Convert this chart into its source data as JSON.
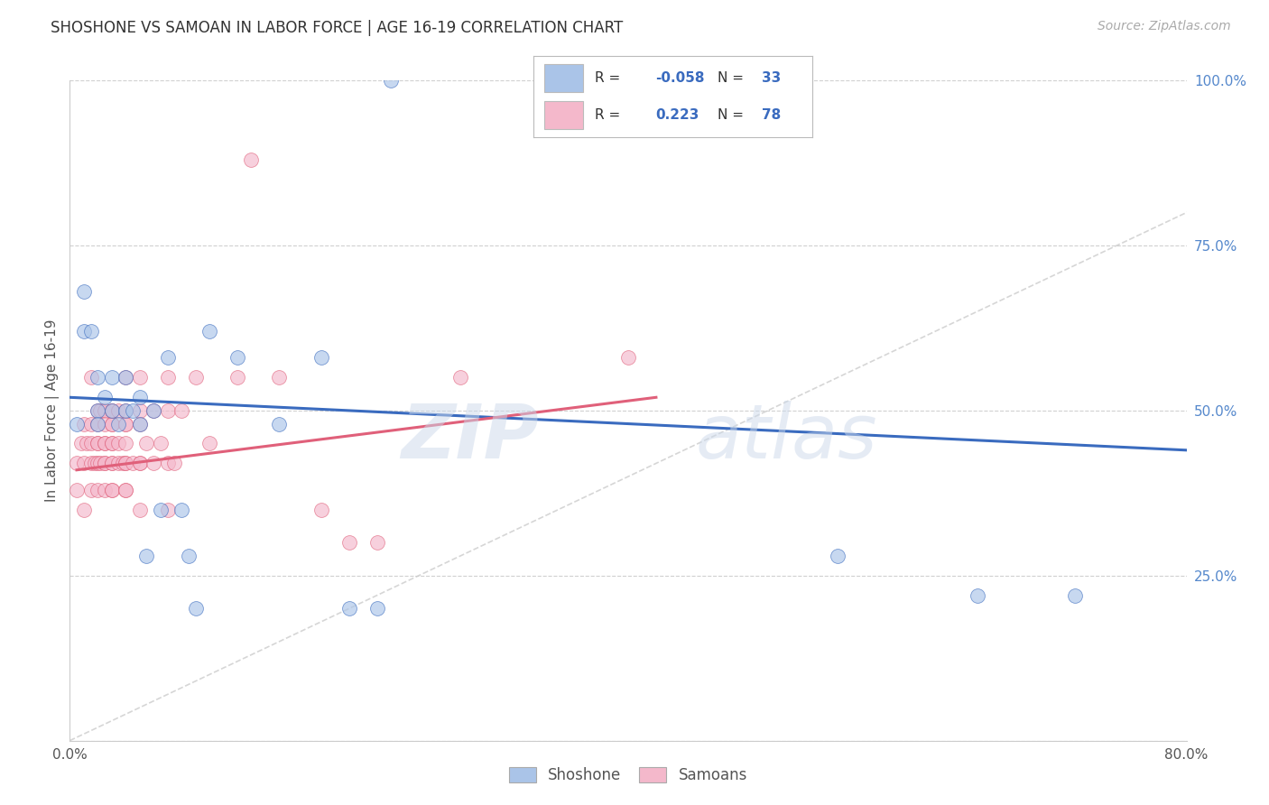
{
  "title": "SHOSHONE VS SAMOAN IN LABOR FORCE | AGE 16-19 CORRELATION CHART",
  "source": "Source: ZipAtlas.com",
  "ylabel": "In Labor Force | Age 16-19",
  "xlim": [
    0.0,
    0.8
  ],
  "ylim": [
    0.0,
    1.0
  ],
  "xticks": [
    0.0,
    0.1,
    0.2,
    0.3,
    0.4,
    0.5,
    0.6,
    0.7,
    0.8
  ],
  "xticklabels": [
    "0.0%",
    "",
    "",
    "",
    "",
    "",
    "",
    "",
    "80.0%"
  ],
  "yticks": [
    0.0,
    0.25,
    0.5,
    0.75,
    1.0
  ],
  "yticklabels": [
    "",
    "25.0%",
    "50.0%",
    "75.0%",
    "100.0%"
  ],
  "shoshone_color": "#aac4e8",
  "samoan_color": "#f4b8cb",
  "shoshone_line_color": "#3a6bbf",
  "samoan_line_color": "#e0607a",
  "diagonal_color": "#cccccc",
  "watermark": "ZIPatlas",
  "legend_R_shoshone": "-0.058",
  "legend_N_shoshone": "33",
  "legend_R_samoan": "0.223",
  "legend_N_samoan": "78",
  "shoshone_x": [
    0.005,
    0.01,
    0.01,
    0.015,
    0.02,
    0.02,
    0.02,
    0.025,
    0.03,
    0.03,
    0.035,
    0.04,
    0.04,
    0.045,
    0.05,
    0.05,
    0.055,
    0.06,
    0.065,
    0.07,
    0.08,
    0.085,
    0.09,
    0.1,
    0.12,
    0.15,
    0.18,
    0.2,
    0.22,
    0.55,
    0.65,
    0.72,
    0.23
  ],
  "shoshone_y": [
    0.48,
    0.62,
    0.68,
    0.62,
    0.5,
    0.48,
    0.55,
    0.52,
    0.55,
    0.5,
    0.48,
    0.55,
    0.5,
    0.5,
    0.48,
    0.52,
    0.28,
    0.5,
    0.35,
    0.58,
    0.35,
    0.28,
    0.2,
    0.62,
    0.58,
    0.48,
    0.58,
    0.2,
    0.2,
    0.28,
    0.22,
    0.22,
    1.0
  ],
  "samoan_x": [
    0.005,
    0.005,
    0.008,
    0.01,
    0.01,
    0.01,
    0.012,
    0.015,
    0.015,
    0.015,
    0.015,
    0.015,
    0.018,
    0.02,
    0.02,
    0.02,
    0.02,
    0.02,
    0.02,
    0.022,
    0.022,
    0.025,
    0.025,
    0.025,
    0.025,
    0.025,
    0.025,
    0.025,
    0.03,
    0.03,
    0.03,
    0.03,
    0.03,
    0.03,
    0.03,
    0.03,
    0.03,
    0.03,
    0.035,
    0.035,
    0.035,
    0.038,
    0.04,
    0.04,
    0.04,
    0.04,
    0.04,
    0.04,
    0.04,
    0.04,
    0.04,
    0.045,
    0.05,
    0.05,
    0.05,
    0.05,
    0.05,
    0.05,
    0.055,
    0.06,
    0.06,
    0.065,
    0.07,
    0.07,
    0.07,
    0.07,
    0.075,
    0.08,
    0.09,
    0.1,
    0.12,
    0.13,
    0.15,
    0.18,
    0.2,
    0.22,
    0.28,
    0.4
  ],
  "samoan_y": [
    0.38,
    0.42,
    0.45,
    0.42,
    0.48,
    0.35,
    0.45,
    0.42,
    0.45,
    0.48,
    0.38,
    0.55,
    0.42,
    0.45,
    0.48,
    0.42,
    0.5,
    0.38,
    0.45,
    0.42,
    0.5,
    0.45,
    0.42,
    0.38,
    0.5,
    0.45,
    0.42,
    0.48,
    0.45,
    0.48,
    0.42,
    0.38,
    0.5,
    0.45,
    0.42,
    0.48,
    0.38,
    0.5,
    0.42,
    0.45,
    0.5,
    0.42,
    0.48,
    0.42,
    0.38,
    0.5,
    0.45,
    0.42,
    0.55,
    0.38,
    0.48,
    0.42,
    0.48,
    0.42,
    0.35,
    0.5,
    0.42,
    0.55,
    0.45,
    0.5,
    0.42,
    0.45,
    0.35,
    0.5,
    0.42,
    0.55,
    0.42,
    0.5,
    0.55,
    0.45,
    0.55,
    0.88,
    0.55,
    0.35,
    0.3,
    0.3,
    0.55,
    0.58
  ],
  "background_color": "#ffffff",
  "grid_color": "#d0d0d0",
  "shoshone_line_x": [
    0.0,
    0.8
  ],
  "shoshone_line_y": [
    0.52,
    0.44
  ],
  "samoan_line_x": [
    0.005,
    0.42
  ],
  "samoan_line_y": [
    0.41,
    0.52
  ]
}
